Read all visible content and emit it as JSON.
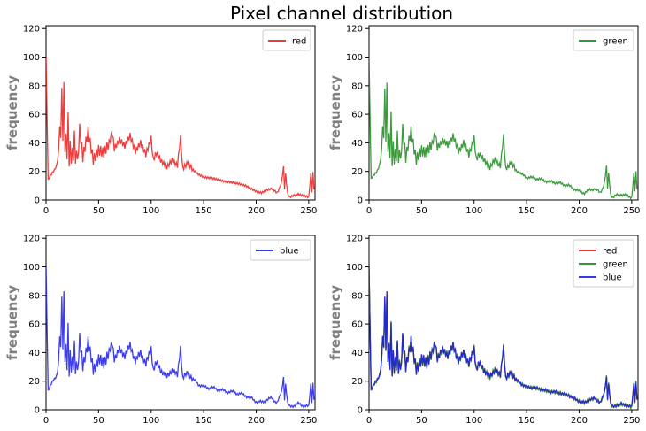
{
  "chart_data": {
    "type": "line",
    "title": "Pixel channel distribution",
    "colors": {
      "red": "#e81c1c",
      "green": "#1a8a1a",
      "blue": "#1c1ce8"
    },
    "xlim": [
      0,
      256
    ],
    "ylim": [
      0,
      122
    ],
    "xticks": [
      "0",
      "50",
      "100",
      "150",
      "200",
      "250"
    ],
    "yticks": [
      "0",
      "20",
      "40",
      "60",
      "80",
      "100",
      "120"
    ],
    "series_shape": {
      "x": [
        0,
        2,
        4,
        6,
        8,
        10,
        11,
        12,
        13,
        14,
        15,
        16,
        17,
        18,
        19,
        20,
        21,
        22,
        23,
        24,
        25,
        26,
        27,
        28,
        29,
        30,
        32,
        35,
        40,
        45,
        50,
        55,
        60,
        63,
        65,
        70,
        75,
        80,
        85,
        90,
        95,
        100,
        102,
        105,
        110,
        115,
        120,
        125,
        128,
        130,
        135,
        140,
        145,
        150,
        160,
        170,
        180,
        190,
        200,
        205,
        210,
        215,
        220,
        222,
        224,
        226,
        227,
        228,
        230,
        232,
        235,
        240,
        245,
        250,
        252,
        253,
        254,
        255
      ],
      "y": [
        100,
        14,
        17,
        19,
        21,
        24,
        28,
        35,
        55,
        40,
        82,
        38,
        86,
        30,
        50,
        25,
        65,
        20,
        45,
        22,
        40,
        24,
        52,
        22,
        38,
        25,
        50,
        30,
        48,
        28,
        35,
        33,
        40,
        47,
        36,
        42,
        38,
        45,
        34,
        40,
        32,
        43,
        28,
        33,
        27,
        23,
        28,
        24,
        44,
        22,
        26,
        21,
        18,
        16,
        15,
        13,
        12,
        10,
        6,
        5,
        7,
        8,
        5,
        8,
        12,
        23,
        8,
        18,
        4,
        2,
        3,
        4,
        3,
        2,
        18,
        6,
        19,
        8
      ]
    },
    "panels": [
      {
        "legend": [
          "red"
        ],
        "legend_position": "top-right",
        "ylabel": "frequency",
        "series": [
          {
            "name": "red",
            "color": "#e81c1c",
            "offset": 0
          }
        ]
      },
      {
        "legend": [
          "green"
        ],
        "legend_position": "top-right",
        "ylabel": "frequency",
        "series": [
          {
            "name": "green",
            "color": "#1a8a1a",
            "offset": 0.6
          }
        ]
      },
      {
        "legend": [
          "blue"
        ],
        "legend_position": "top-right",
        "ylabel": "frequency",
        "series": [
          {
            "name": "blue",
            "color": "#1c1ce8",
            "offset": -0.8
          }
        ]
      },
      {
        "legend": [
          "red",
          "green",
          "blue"
        ],
        "legend_position": "top-right",
        "ylabel": "frequency",
        "series": [
          {
            "name": "red",
            "color": "#e81c1c",
            "offset": 0
          },
          {
            "name": "green",
            "color": "#1a8a1a",
            "offset": 0.6
          },
          {
            "name": "blue",
            "color": "#1c1ce8",
            "offset": -0.8
          }
        ]
      }
    ]
  }
}
